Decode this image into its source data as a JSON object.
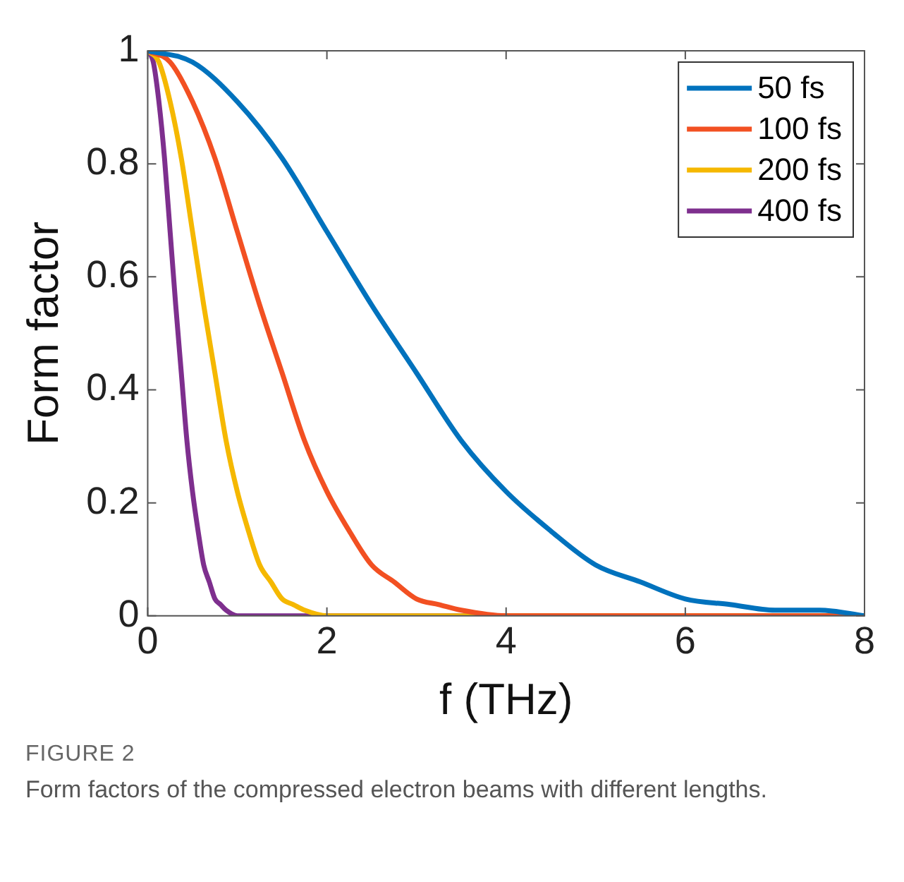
{
  "chart_data": {
    "type": "line",
    "xlabel": "f (THz)",
    "ylabel": "Form factor",
    "xlim": [
      0,
      8
    ],
    "ylim": [
      0,
      1
    ],
    "xticks": [
      0,
      2,
      4,
      6,
      8
    ],
    "yticks": [
      0,
      0.2,
      0.4,
      0.6,
      0.8,
      1
    ],
    "grid": false,
    "legend": "top right",
    "marker": "none",
    "line_style": "solid",
    "annotations": [
      "FIGURE 2",
      "Form factors of the compressed electron beams with different lengths."
    ],
    "series": [
      {
        "name": "50 fs",
        "color": "#0072bd",
        "x": [
          0,
          0.5,
          1,
          1.5,
          2,
          2.5,
          3,
          3.5,
          4,
          4.5,
          5,
          5.5,
          6,
          6.5,
          7,
          7.5,
          8
        ],
        "values": [
          1,
          0.98,
          0.91,
          0.81,
          0.68,
          0.55,
          0.43,
          0.31,
          0.22,
          0.15,
          0.09,
          0.06,
          0.03,
          0.02,
          0.01,
          0.01,
          0
        ]
      },
      {
        "name": "100 fs",
        "color": "#f25022",
        "x": [
          0,
          0.25,
          0.5,
          0.75,
          1,
          1.25,
          1.5,
          1.75,
          2,
          2.25,
          2.5,
          2.75,
          3,
          3.25,
          3.5,
          4,
          8
        ],
        "values": [
          1,
          0.98,
          0.91,
          0.81,
          0.68,
          0.55,
          0.43,
          0.31,
          0.22,
          0.15,
          0.09,
          0.06,
          0.03,
          0.02,
          0.01,
          0,
          0
        ]
      },
      {
        "name": "200 fs",
        "color": "#f5b800",
        "x": [
          0,
          0.125,
          0.25,
          0.375,
          0.5,
          0.625,
          0.75,
          0.875,
          1,
          1.125,
          1.25,
          1.375,
          1.5,
          1.625,
          1.75,
          2,
          8
        ],
        "values": [
          1,
          0.98,
          0.91,
          0.81,
          0.68,
          0.55,
          0.43,
          0.31,
          0.22,
          0.15,
          0.09,
          0.06,
          0.03,
          0.02,
          0.01,
          0,
          0
        ]
      },
      {
        "name": "400 fs",
        "color": "#7e2f8e",
        "x": [
          0,
          0.0625,
          0.125,
          0.1875,
          0.25,
          0.3125,
          0.375,
          0.4375,
          0.5,
          0.5625,
          0.625,
          0.6875,
          0.75,
          0.8125,
          0.875,
          1,
          8
        ],
        "values": [
          1,
          0.98,
          0.91,
          0.81,
          0.68,
          0.55,
          0.43,
          0.31,
          0.22,
          0.15,
          0.09,
          0.06,
          0.03,
          0.02,
          0.01,
          0,
          0
        ]
      }
    ]
  }
}
